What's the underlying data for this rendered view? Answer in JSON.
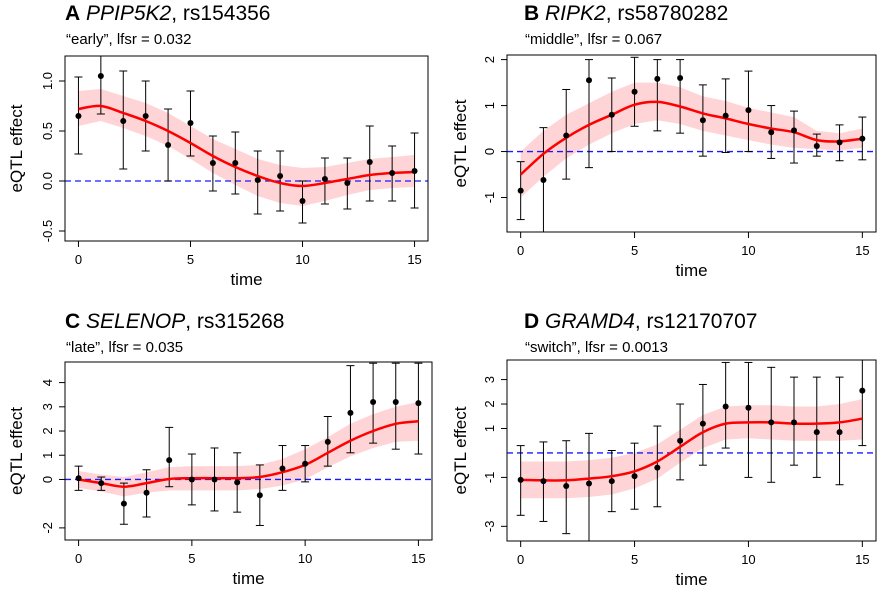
{
  "chart_data": [
    {
      "type": "line",
      "letter": "A",
      "gene": "PPIP5K2",
      "snp": ", rs154356",
      "subtitle": "“early”, lfsr = 0.032",
      "xlabel": "time",
      "ylabel": "eQTL effect",
      "xlim": [
        -0.6,
        15.6
      ],
      "ylim": [
        -0.6,
        1.25
      ],
      "xticks": [
        0,
        5,
        10,
        15
      ],
      "xtick_labels": [
        "0",
        "5",
        "10",
        "15"
      ],
      "yticks": [
        -0.5,
        0.0,
        0.5,
        1.0
      ],
      "ytick_labels": [
        "-0.5",
        "0.0",
        "0.5",
        "1.0"
      ],
      "points": {
        "x": [
          0,
          1,
          2,
          3,
          4,
          5,
          6,
          7,
          8,
          9,
          10,
          11,
          12,
          13,
          14,
          15
        ],
        "y": [
          0.65,
          1.05,
          0.6,
          0.65,
          0.36,
          0.58,
          0.18,
          0.18,
          0.01,
          0.05,
          -0.2,
          0.02,
          -0.02,
          0.19,
          0.08,
          0.1
        ],
        "lower": [
          0.27,
          0.67,
          0.12,
          0.3,
          0.0,
          0.25,
          -0.1,
          -0.13,
          -0.33,
          -0.3,
          -0.42,
          -0.23,
          -0.28,
          -0.2,
          -0.2,
          -0.27
        ],
        "upper": [
          1.04,
          1.25,
          1.1,
          1.0,
          0.72,
          0.9,
          0.45,
          0.49,
          0.3,
          0.3,
          0.0,
          0.23,
          0.23,
          0.55,
          0.35,
          0.48
        ]
      },
      "smooth": {
        "x": [
          0,
          1,
          2,
          3,
          4,
          5,
          6,
          7,
          8,
          9,
          10,
          11,
          12,
          13,
          14,
          15
        ],
        "y": [
          0.72,
          0.75,
          0.68,
          0.6,
          0.5,
          0.38,
          0.25,
          0.14,
          0.05,
          -0.02,
          -0.05,
          -0.02,
          0.02,
          0.06,
          0.08,
          0.09
        ],
        "lower": [
          0.55,
          0.6,
          0.53,
          0.45,
          0.35,
          0.22,
          0.08,
          -0.04,
          -0.15,
          -0.22,
          -0.25,
          -0.2,
          -0.14,
          -0.09,
          -0.07,
          -0.06
        ],
        "upper": [
          0.9,
          0.92,
          0.85,
          0.78,
          0.68,
          0.55,
          0.42,
          0.32,
          0.22,
          0.16,
          0.13,
          0.14,
          0.18,
          0.22,
          0.24,
          0.26
        ]
      },
      "reference_line": 0
    },
    {
      "type": "line",
      "letter": "B",
      "gene": "RIPK2",
      "snp": ", rs58780282",
      "subtitle": "“middle”, lfsr = 0.067",
      "xlabel": "time",
      "ylabel": "eQTL effect",
      "xlim": [
        -0.6,
        15.6
      ],
      "ylim": [
        -1.75,
        2.1
      ],
      "xticks": [
        0,
        5,
        10,
        15
      ],
      "xtick_labels": [
        "0",
        "5",
        "10",
        "15"
      ],
      "yticks": [
        -1,
        0,
        1,
        2
      ],
      "ytick_labels": [
        "-1",
        "0",
        "1",
        "2"
      ],
      "points": {
        "x": [
          0,
          1,
          2,
          3,
          4,
          5,
          6,
          7,
          8,
          9,
          10,
          11,
          12,
          13,
          14,
          15
        ],
        "y": [
          -0.85,
          -0.62,
          0.35,
          1.55,
          0.8,
          1.3,
          1.58,
          1.6,
          0.68,
          0.78,
          0.9,
          0.42,
          0.46,
          0.12,
          0.2,
          0.28
        ],
        "lower": [
          -1.48,
          -1.75,
          -0.6,
          -0.35,
          0.0,
          0.55,
          0.45,
          0.4,
          -0.1,
          -0.02,
          0.0,
          -0.15,
          -0.25,
          -0.1,
          -0.2,
          -0.18
        ],
        "upper": [
          -0.22,
          0.52,
          1.35,
          2.0,
          1.6,
          2.05,
          2.0,
          2.0,
          1.45,
          1.58,
          1.75,
          1.0,
          0.88,
          0.38,
          0.58,
          0.75
        ]
      },
      "smooth": {
        "x": [
          0,
          1,
          2,
          3,
          4,
          5,
          6,
          7,
          8,
          9,
          10,
          11,
          12,
          13,
          14,
          15
        ],
        "y": [
          -0.5,
          -0.05,
          0.3,
          0.58,
          0.8,
          1.02,
          1.08,
          0.98,
          0.83,
          0.72,
          0.6,
          0.5,
          0.42,
          0.25,
          0.22,
          0.28
        ],
        "lower": [
          -1.0,
          -0.55,
          -0.15,
          0.15,
          0.4,
          0.6,
          0.68,
          0.6,
          0.45,
          0.35,
          0.25,
          0.15,
          0.08,
          0.05,
          0.03,
          0.08
        ],
        "upper": [
          0.0,
          0.45,
          0.8,
          1.05,
          1.3,
          1.5,
          1.5,
          1.4,
          1.2,
          1.1,
          0.95,
          0.85,
          0.75,
          0.45,
          0.4,
          0.5
        ]
      },
      "reference_line": 0
    },
    {
      "type": "line",
      "letter": "C",
      "gene": "SELENOP",
      "snp": ", rs315268",
      "subtitle": "“late”, lfsr = 0.035",
      "xlabel": "time",
      "ylabel": "eQTL effect",
      "xlim": [
        -0.6,
        15.6
      ],
      "ylim": [
        -2.5,
        4.85
      ],
      "xticks": [
        0,
        5,
        10,
        15
      ],
      "xtick_labels": [
        "0",
        "5",
        "10",
        "15"
      ],
      "yticks": [
        -2,
        0,
        1,
        2,
        3,
        4
      ],
      "ytick_labels": [
        "-2",
        "0",
        "1",
        "2",
        "3",
        "4"
      ],
      "points": {
        "x": [
          0,
          1,
          2,
          3,
          4,
          5,
          6,
          7,
          8,
          9,
          10,
          11,
          12,
          13,
          14,
          15
        ],
        "y": [
          0.05,
          -0.15,
          -1.0,
          -0.55,
          0.8,
          0.0,
          0.0,
          -0.12,
          -0.65,
          0.45,
          0.65,
          1.55,
          2.75,
          3.2,
          3.2,
          3.15
        ],
        "lower": [
          -0.45,
          -0.45,
          -1.85,
          -1.55,
          -0.3,
          -1.05,
          -1.3,
          -1.35,
          -1.9,
          -0.45,
          -0.1,
          0.55,
          1.1,
          1.5,
          1.25,
          1.05
        ],
        "upper": [
          0.55,
          0.1,
          -0.15,
          0.4,
          2.15,
          1.05,
          1.3,
          1.1,
          0.6,
          1.4,
          1.4,
          2.6,
          4.7,
          4.8,
          4.8,
          4.8
        ]
      },
      "smooth": {
        "x": [
          0,
          1,
          2,
          3,
          4,
          5,
          6,
          7,
          8,
          9,
          10,
          11,
          12,
          13,
          14,
          15
        ],
        "y": [
          0.0,
          -0.15,
          -0.3,
          -0.15,
          0.02,
          0.05,
          0.05,
          0.05,
          0.1,
          0.3,
          0.6,
          1.1,
          1.6,
          2.0,
          2.3,
          2.4
        ],
        "lower": [
          -0.35,
          -0.5,
          -0.7,
          -0.55,
          -0.45,
          -0.45,
          -0.45,
          -0.45,
          -0.4,
          -0.25,
          0.0,
          0.5,
          0.95,
          1.3,
          1.55,
          1.6
        ],
        "upper": [
          0.35,
          0.2,
          0.1,
          0.3,
          0.5,
          0.55,
          0.55,
          0.55,
          0.6,
          0.85,
          1.25,
          1.75,
          2.3,
          2.7,
          3.0,
          3.2
        ]
      },
      "reference_line": 0
    },
    {
      "type": "line",
      "letter": "D",
      "gene": "GRAMD4",
      "snp": ", rs12170707",
      "subtitle": "“switch”, lfsr = 0.0013",
      "xlabel": "time",
      "ylabel": "eQTL effect",
      "xlim": [
        -0.6,
        15.6
      ],
      "ylim": [
        -3.6,
        3.8
      ],
      "xticks": [
        0,
        5,
        10,
        15
      ],
      "xtick_labels": [
        "0",
        "5",
        "10",
        "15"
      ],
      "yticks": [
        -3,
        -1,
        1,
        2,
        3
      ],
      "ytick_labels": [
        "-3",
        "-1",
        "1",
        "2",
        "3"
      ],
      "points": {
        "x": [
          0,
          1,
          2,
          3,
          4,
          5,
          6,
          7,
          8,
          9,
          10,
          11,
          12,
          13,
          14,
          15
        ],
        "y": [
          -1.1,
          -1.15,
          -1.35,
          -1.25,
          -1.15,
          -0.95,
          -0.6,
          0.5,
          1.2,
          1.9,
          1.85,
          1.25,
          1.25,
          0.85,
          0.85,
          2.55
        ],
        "lower": [
          -2.55,
          -2.8,
          -3.3,
          -3.7,
          -2.4,
          -2.3,
          -2.2,
          -1.1,
          -0.5,
          0.2,
          -1.0,
          -1.2,
          -0.5,
          -1.0,
          -1.3,
          0.3
        ],
        "upper": [
          0.3,
          0.45,
          0.5,
          0.8,
          0.1,
          0.4,
          1.1,
          2.0,
          2.8,
          3.7,
          3.7,
          3.5,
          3.1,
          3.1,
          3.1,
          4.2
        ]
      },
      "smooth": {
        "x": [
          0,
          1,
          2,
          3,
          4,
          5,
          6,
          7,
          8,
          9,
          10,
          11,
          12,
          13,
          14,
          15
        ],
        "y": [
          -1.1,
          -1.12,
          -1.12,
          -1.05,
          -0.95,
          -0.75,
          -0.35,
          0.25,
          0.85,
          1.2,
          1.25,
          1.25,
          1.2,
          1.2,
          1.25,
          1.4
        ],
        "lower": [
          -1.85,
          -1.85,
          -1.85,
          -1.8,
          -1.7,
          -1.45,
          -1.05,
          -0.4,
          0.2,
          0.55,
          0.6,
          0.55,
          0.5,
          0.5,
          0.5,
          0.55
        ],
        "upper": [
          -0.35,
          -0.35,
          -0.35,
          -0.3,
          -0.2,
          0.0,
          0.35,
          0.95,
          1.55,
          1.9,
          1.95,
          1.95,
          1.9,
          1.9,
          2.0,
          2.2
        ]
      },
      "reference_line": 0
    }
  ],
  "colors": {
    "smooth_line": "#ff0000",
    "band_fill": "#ffd4d6",
    "reference_line": "#1a1aff",
    "points": "#000000",
    "error_bars": "#000000"
  }
}
